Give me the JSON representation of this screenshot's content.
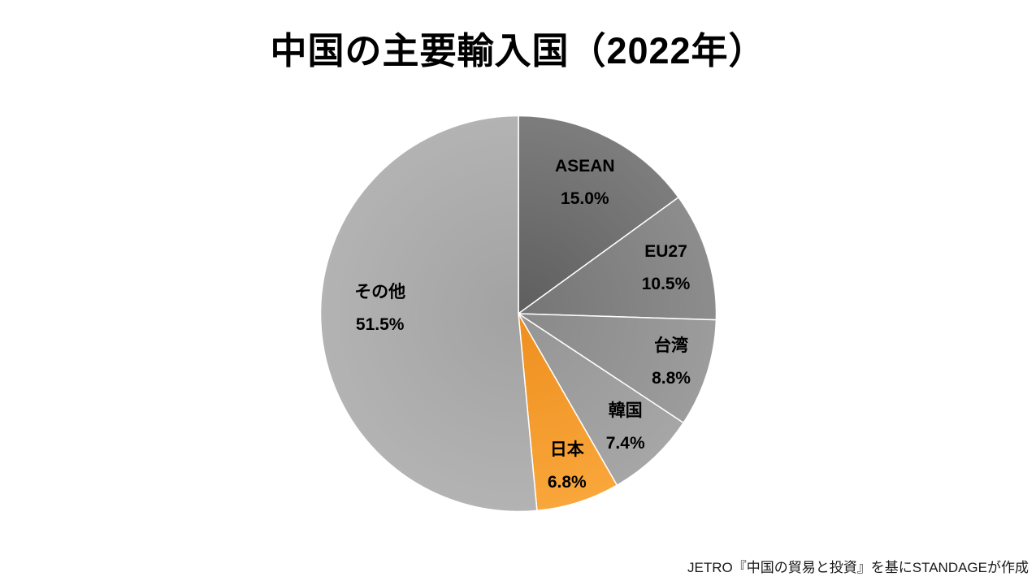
{
  "slide": {
    "title": "中国の主要輸入国（2022年）",
    "source_note": "JETRO『中国の貿易と投資』を基にSTANDAGEが作成",
    "background_color": "#ffffff",
    "title_color": "#000000",
    "accent_color": "#F7A02E"
  },
  "chart_data": {
    "type": "pie",
    "title": "中国の主要輸入国（2022年）",
    "unit": "%",
    "start_angle_deg": 0,
    "direction": "clockwise",
    "total": 100,
    "legend": "none",
    "labels_position": "inside",
    "label_text_color": "#000000",
    "slice_border_color": "#ffffff",
    "categories": [
      "ASEAN",
      "EU27",
      "台湾",
      "韓国",
      "日本",
      "その他"
    ],
    "values": [
      15.0,
      10.5,
      8.8,
      7.4,
      6.8,
      51.5
    ],
    "slices": [
      {
        "id": "asean",
        "name": "ASEAN",
        "value": 15.0,
        "pct_label": "15.0%",
        "color_inner": "#5e5e5e",
        "color_outer": "#7d7d7d",
        "label_r": 0.74
      },
      {
        "id": "eu27",
        "name": "EU27",
        "value": 10.5,
        "pct_label": "10.5%",
        "color_inner": "#757575",
        "color_outer": "#8d8d8d",
        "label_r": 0.78
      },
      {
        "id": "taiwan",
        "name": "台湾",
        "value": 8.8,
        "pct_label": "8.8%",
        "color_inner": "#898989",
        "color_outer": "#9c9c9c",
        "label_r": 0.81
      },
      {
        "id": "korea",
        "name": "韓国",
        "value": 7.4,
        "pct_label": "7.4%",
        "color_inner": "#959595",
        "color_outer": "#a6a6a6",
        "label_r": 0.79
      },
      {
        "id": "japan",
        "name": "日本",
        "value": 6.8,
        "pct_label": "6.8%",
        "color_inner": "#ee8f1f",
        "color_outer": "#f9a63a",
        "label_r": 0.81,
        "highlighted": true
      },
      {
        "id": "others",
        "name": "その他",
        "value": 51.5,
        "pct_label": "51.5%",
        "color_inner": "#a2a2a2",
        "color_outer": "#b3b3b3",
        "label_r": 0.7,
        "label_angle_deg": 272
      }
    ]
  }
}
